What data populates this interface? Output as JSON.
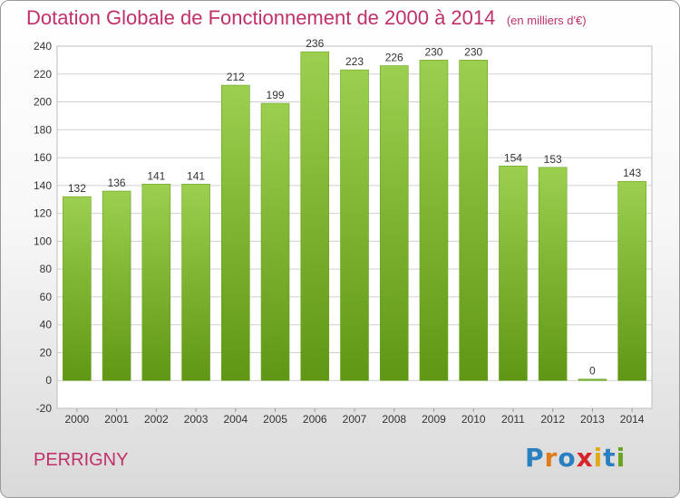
{
  "header": {
    "title": "Dotation Globale de Fonctionnement de 2000 à 2014",
    "subtitle": "(en milliers d'€)"
  },
  "footer": {
    "commune": "PERRIGNY",
    "logo": "Proxiti"
  },
  "colors": {
    "title": "#c0306a",
    "bar_top": "#9ccf4f",
    "bar_bottom": "#5f9714",
    "grid": "#cfcfcf"
  },
  "chart_data": {
    "type": "bar",
    "title": "Dotation Globale de Fonctionnement de 2000 à 2014",
    "subtitle": "(en milliers d'€)",
    "categories": [
      "2000",
      "2001",
      "2002",
      "2003",
      "2004",
      "2005",
      "2006",
      "2007",
      "2008",
      "2009",
      "2010",
      "2011",
      "2012",
      "2013",
      "2014"
    ],
    "values": [
      132,
      136,
      141,
      141,
      212,
      199,
      236,
      223,
      226,
      230,
      230,
      154,
      153,
      0,
      143
    ],
    "ylim": [
      -20,
      240
    ],
    "yticks": [
      -20,
      0,
      20,
      40,
      60,
      80,
      100,
      120,
      140,
      160,
      180,
      200,
      220,
      240
    ],
    "grid": true,
    "xlabel": "",
    "ylabel": ""
  }
}
